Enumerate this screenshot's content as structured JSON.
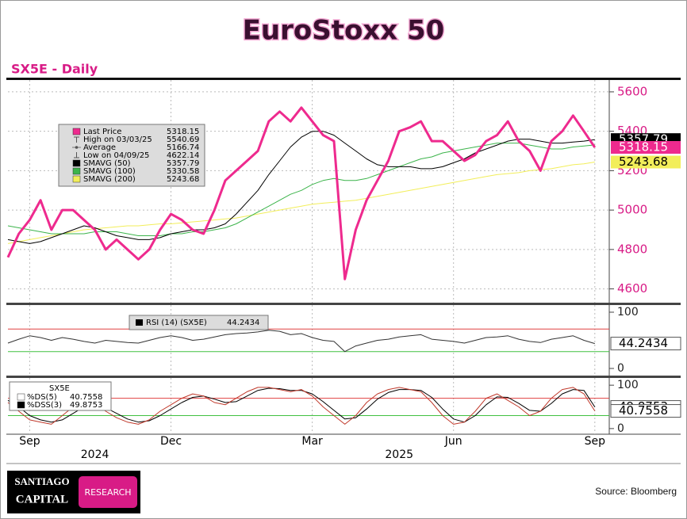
{
  "title": "EuroStoxx 50",
  "subtitle": "SX5E - Daily",
  "source": "Source: Bloomberg",
  "logo": {
    "line1": "SANTIAGO",
    "line2": "CAPITAL",
    "badge": "RESEARCH"
  },
  "chart_data": [
    {
      "type": "line",
      "categories": [
        null,
        null,
        "Sep",
        null,
        null,
        null,
        null,
        null,
        null,
        null,
        null,
        null,
        null,
        null,
        null,
        "Dec",
        null,
        null,
        null,
        null,
        null,
        null,
        null,
        null,
        null,
        null,
        null,
        null,
        "Mar",
        null,
        null,
        null,
        null,
        null,
        null,
        null,
        null,
        null,
        null,
        null,
        null,
        "Jun",
        null,
        null,
        null,
        null,
        null,
        null,
        null,
        null,
        null,
        null,
        null,
        null,
        "Sep"
      ],
      "annotations": [
        {
          "label": "2024",
          "index": 8
        },
        {
          "label": "2025",
          "index": 36
        }
      ],
      "ylim": [
        4530,
        5660
      ],
      "yticks": [
        4600,
        4800,
        5000,
        5200,
        5400,
        5600
      ],
      "grid": true,
      "series": [
        {
          "name": "Last Price",
          "color": "#ee2a8e",
          "values": [
            4760,
            4880,
            4950,
            5050,
            4900,
            5000,
            5000,
            4950,
            4900,
            4800,
            4850,
            4800,
            4750,
            4800,
            4900,
            4980,
            4950,
            4900,
            4880,
            5000,
            5150,
            5200,
            5250,
            5300,
            5450,
            5500,
            5450,
            5520,
            5450,
            5380,
            5350,
            4650,
            4900,
            5050,
            5150,
            5250,
            5400,
            5420,
            5450,
            5350,
            5350,
            5300,
            5250,
            5280,
            5350,
            5380,
            5450,
            5350,
            5300,
            5200,
            5350,
            5400,
            5480,
            5400,
            5318.15
          ]
        },
        {
          "name": "SMAVG (50)",
          "color": "#000000",
          "values": [
            4850,
            4840,
            4830,
            4840,
            4860,
            4880,
            4900,
            4920,
            4910,
            4890,
            4870,
            4860,
            4850,
            4850,
            4860,
            4880,
            4890,
            4900,
            4900,
            4910,
            4930,
            4980,
            5040,
            5100,
            5180,
            5250,
            5320,
            5370,
            5400,
            5400,
            5380,
            5340,
            5300,
            5260,
            5230,
            5220,
            5220,
            5220,
            5210,
            5210,
            5220,
            5240,
            5260,
            5290,
            5310,
            5330,
            5350,
            5360,
            5360,
            5350,
            5340,
            5340,
            5345,
            5350,
            5357.79
          ]
        },
        {
          "name": "SMAVG (100)",
          "color": "#3cb44b",
          "values": [
            4920,
            4910,
            4900,
            4890,
            4880,
            4880,
            4880,
            4880,
            4890,
            4890,
            4890,
            4880,
            4870,
            4870,
            4870,
            4880,
            4880,
            4890,
            4890,
            4900,
            4910,
            4930,
            4960,
            4990,
            5020,
            5050,
            5080,
            5100,
            5130,
            5150,
            5160,
            5150,
            5150,
            5160,
            5180,
            5200,
            5220,
            5240,
            5260,
            5270,
            5290,
            5300,
            5310,
            5320,
            5330,
            5340,
            5340,
            5340,
            5330,
            5320,
            5310,
            5310,
            5320,
            5325,
            5330.58
          ]
        },
        {
          "name": "SMAVG (200)",
          "color": "#f2ee5a",
          "values": [
            4830,
            4840,
            4850,
            4860,
            4870,
            4880,
            4890,
            4900,
            4905,
            4910,
            4915,
            4920,
            4920,
            4925,
            4930,
            4930,
            4935,
            4940,
            4945,
            4950,
            4955,
            4960,
            4970,
            4980,
            4990,
            5000,
            5010,
            5020,
            5030,
            5035,
            5040,
            5045,
            5050,
            5060,
            5070,
            5080,
            5090,
            5100,
            5110,
            5120,
            5130,
            5140,
            5150,
            5160,
            5170,
            5180,
            5185,
            5190,
            5200,
            5205,
            5210,
            5220,
            5230,
            5235,
            5243.68
          ]
        }
      ],
      "stats": [
        {
          "name": "High on 03/03/25",
          "value": 5540.69
        },
        {
          "name": "Average",
          "value": 5166.74
        },
        {
          "name": "Low on 04/09/25",
          "value": 4622.14
        }
      ]
    },
    {
      "type": "line",
      "ylim": [
        -12.7,
        112.7
      ],
      "yticks": [
        0,
        100
      ],
      "ref_lines": [
        {
          "value": 70,
          "color": "#e04040"
        },
        {
          "value": 30,
          "color": "#40c040"
        }
      ],
      "series": [
        {
          "name": "RSI (14) (SX5E)",
          "color": "#333333",
          "values": [
            45,
            52,
            58,
            55,
            50,
            55,
            52,
            48,
            45,
            50,
            48,
            46,
            45,
            50,
            55,
            58,
            55,
            50,
            52,
            56,
            60,
            62,
            63,
            65,
            68,
            66,
            60,
            62,
            55,
            50,
            48,
            30,
            40,
            45,
            50,
            52,
            56,
            58,
            60,
            52,
            50,
            48,
            45,
            50,
            55,
            56,
            58,
            52,
            48,
            46,
            52,
            55,
            58,
            50,
            44.2434
          ]
        }
      ]
    },
    {
      "type": "line",
      "legend_title": "SX5E",
      "ylim": [
        -13,
        116.7
      ],
      "yticks": [
        0,
        100
      ],
      "ref_lines": [
        {
          "value": 70,
          "color": "#e04040"
        },
        {
          "value": 30,
          "color": "#40c040"
        }
      ],
      "series": [
        {
          "name": "%DS(5)",
          "color": "#c0392b",
          "values": [
            60,
            40,
            20,
            15,
            10,
            30,
            50,
            60,
            55,
            40,
            25,
            15,
            10,
            20,
            40,
            55,
            70,
            80,
            75,
            60,
            55,
            70,
            85,
            95,
            95,
            90,
            85,
            90,
            75,
            50,
            30,
            10,
            30,
            60,
            80,
            90,
            95,
            90,
            85,
            60,
            30,
            10,
            15,
            40,
            70,
            80,
            65,
            50,
            30,
            40,
            70,
            90,
            95,
            80,
            40.7558
          ]
        },
        {
          "name": "%DSS(3)",
          "color": "#000000",
          "values": [
            65,
            50,
            30,
            20,
            15,
            20,
            35,
            50,
            55,
            48,
            35,
            22,
            15,
            18,
            30,
            45,
            60,
            72,
            75,
            68,
            60,
            62,
            75,
            88,
            93,
            92,
            88,
            88,
            80,
            62,
            42,
            22,
            25,
            45,
            68,
            83,
            90,
            90,
            88,
            72,
            45,
            22,
            15,
            30,
            55,
            73,
            72,
            58,
            42,
            40,
            58,
            80,
            90,
            88,
            49.8753
          ]
        }
      ]
    }
  ]
}
